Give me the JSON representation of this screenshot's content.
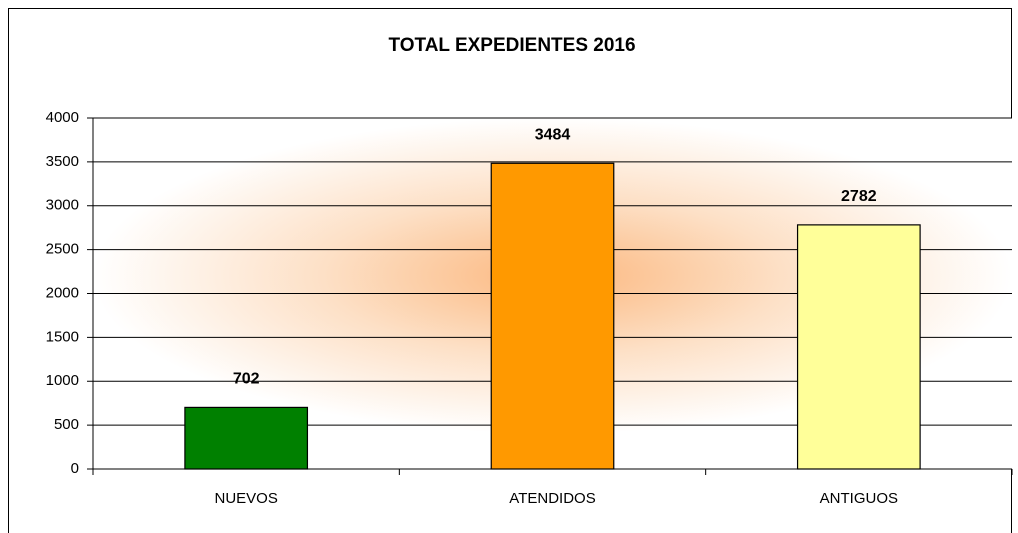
{
  "chart_data": {
    "type": "bar",
    "title": "TOTAL EXPEDIENTES 2016",
    "categories": [
      "NUEVOS",
      "ATENDIDOS",
      "ANTIGUOS"
    ],
    "values": [
      702,
      3484,
      2782
    ],
    "colors": [
      "#008000",
      "#ff9900",
      "#ffff99"
    ],
    "ylim": [
      0,
      4000
    ],
    "yticks": [
      0,
      500,
      1000,
      1500,
      2000,
      2500,
      3000,
      3500,
      4000
    ],
    "grid": true
  }
}
